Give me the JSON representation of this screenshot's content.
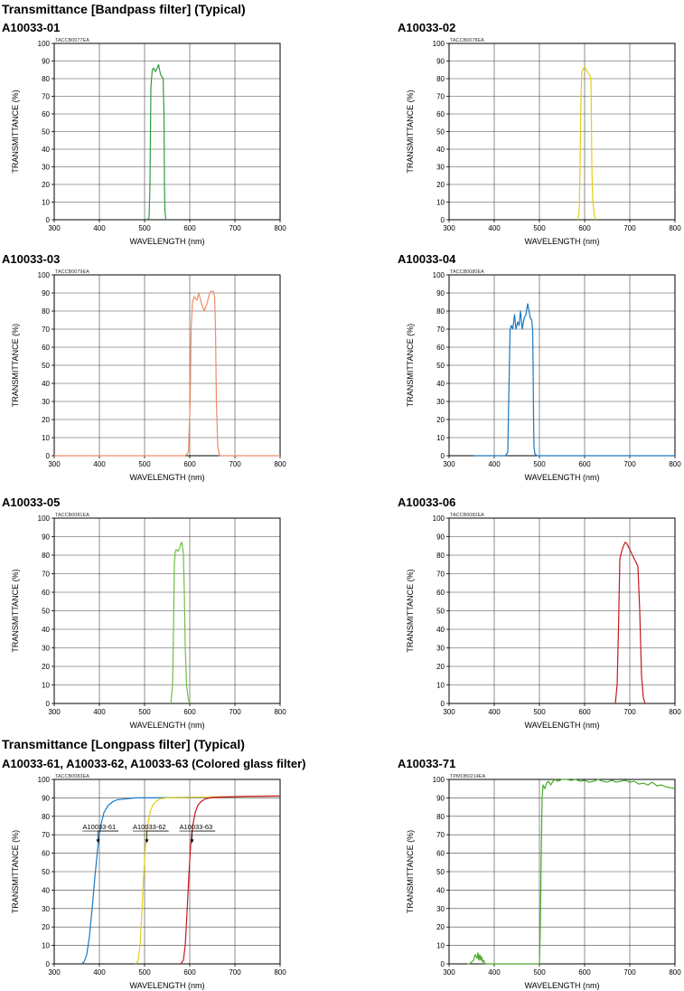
{
  "sections": [
    {
      "title": "Transmittance [Bandpass filter] (Typical)"
    },
    {
      "title": "Transmittance [Longpass filter] (Typical)"
    }
  ],
  "panels": [
    {
      "title": "A10033-01"
    },
    {
      "title": "A10033-02"
    },
    {
      "title": "A10033-03"
    },
    {
      "title": "A10033-04"
    },
    {
      "title": "A10033-05"
    },
    {
      "title": "A10033-06"
    },
    {
      "title": "A10033-61, A10033-62, A10033-63 (Colored glass filter)"
    },
    {
      "title": "A10033-71"
    }
  ],
  "chart_data": [
    {
      "type": "line",
      "code": "TACCB0077EA",
      "xlabel": "WAVELENGTH (nm)",
      "ylabel": "TRANSMITTANCE (%)",
      "xlim": [
        300,
        800
      ],
      "ylim": [
        0,
        100
      ],
      "grid": true,
      "xticks": [
        300,
        400,
        500,
        600,
        700,
        800
      ],
      "yticks": [
        0,
        10,
        20,
        30,
        40,
        50,
        60,
        70,
        80,
        90,
        100
      ],
      "series": [
        {
          "color": "#2e9e3f",
          "x": [
            505,
            510,
            512,
            514,
            517,
            520,
            524,
            528,
            531,
            534,
            536,
            539,
            541,
            543,
            544,
            545,
            547
          ],
          "y": [
            0,
            1,
            20,
            75,
            85,
            86,
            84,
            86,
            88,
            84,
            82,
            81,
            80,
            60,
            20,
            5,
            0
          ]
        }
      ]
    },
    {
      "type": "line",
      "code": "TACCB0078EA",
      "xlabel": "WAVELENGTH (nm)",
      "ylabel": "TRANSMITTANCE (%)",
      "xlim": [
        300,
        800
      ],
      "ylim": [
        0,
        100
      ],
      "grid": true,
      "xticks": [
        300,
        400,
        500,
        600,
        700,
        800
      ],
      "yticks": [
        0,
        10,
        20,
        30,
        40,
        50,
        60,
        70,
        80,
        90,
        100
      ],
      "series": [
        {
          "color": "#e2cf1a",
          "x": [
            585,
            588,
            590,
            592,
            594,
            596,
            600,
            604,
            608,
            611,
            613,
            614,
            615,
            616,
            618,
            622,
            625
          ],
          "y": [
            0,
            5,
            30,
            70,
            84,
            85,
            87,
            85,
            83,
            82,
            81,
            79,
            60,
            30,
            10,
            2,
            0
          ]
        }
      ]
    },
    {
      "type": "line",
      "code": "TACCB0079EA",
      "xlabel": "WAVELENGTH (nm)",
      "ylabel": "TRANSMITTANCE (%)",
      "xlim": [
        300,
        800
      ],
      "ylim": [
        0,
        100
      ],
      "grid": true,
      "xticks": [
        300,
        400,
        500,
        600,
        700,
        800
      ],
      "yticks": [
        0,
        10,
        20,
        30,
        40,
        50,
        60,
        70,
        80,
        90,
        100
      ],
      "series": [
        {
          "color": "#f08c6a",
          "x": [
            300,
            590,
            597,
            601,
            603,
            606,
            610,
            616,
            620,
            626,
            632,
            638,
            644,
            648,
            652,
            655,
            657,
            659,
            662,
            666,
            800
          ],
          "y": [
            0,
            0,
            2,
            30,
            70,
            85,
            88,
            86,
            90,
            84,
            80,
            84,
            90,
            91,
            91,
            88,
            70,
            30,
            5,
            0,
            0
          ]
        }
      ]
    },
    {
      "type": "line",
      "code": "TACCB0080EA",
      "xlabel": "WAVELENGTH (nm)",
      "ylabel": "TRANSMITTANCE (%)",
      "xlim": [
        300,
        800
      ],
      "ylim": [
        0,
        100
      ],
      "grid": true,
      "xticks": [
        300,
        400,
        500,
        600,
        700,
        800
      ],
      "yticks": [
        0,
        10,
        20,
        30,
        40,
        50,
        60,
        70,
        80,
        90,
        100
      ],
      "series": [
        {
          "color": "#1a78c2",
          "x": [
            355,
            425,
            430,
            432,
            435,
            438,
            441,
            445,
            448,
            452,
            455,
            458,
            462,
            466,
            470,
            474,
            477,
            480,
            483,
            485,
            486,
            487,
            488,
            490,
            495,
            800
          ],
          "y": [
            0,
            0,
            2,
            30,
            70,
            72,
            70,
            78,
            70,
            74,
            72,
            80,
            70,
            76,
            78,
            84,
            80,
            76,
            75,
            70,
            50,
            20,
            5,
            1,
            0,
            0
          ]
        }
      ]
    },
    {
      "type": "line",
      "code": "TACCB0081EA",
      "xlabel": "WAVELENGTH (nm)",
      "ylabel": "TRANSMITTANCE (%)",
      "xlim": [
        300,
        800
      ],
      "ylim": [
        0,
        100
      ],
      "grid": true,
      "xticks": [
        300,
        400,
        500,
        600,
        700,
        800
      ],
      "yticks": [
        0,
        10,
        20,
        30,
        40,
        50,
        60,
        70,
        80,
        90,
        100
      ],
      "series": [
        {
          "color": "#6ec043",
          "x": [
            558,
            562,
            564,
            566,
            568,
            570,
            574,
            578,
            580,
            582,
            584,
            586,
            588,
            590,
            593,
            597,
            600
          ],
          "y": [
            0,
            10,
            40,
            76,
            82,
            83,
            82,
            84,
            86,
            87,
            85,
            80,
            60,
            30,
            10,
            2,
            0
          ]
        }
      ]
    },
    {
      "type": "line",
      "code": "TACCB0082EA",
      "xlabel": "WAVELENGTH (nm)",
      "ylabel": "TRANSMITTANCE (%)",
      "xlim": [
        300,
        800
      ],
      "ylim": [
        0,
        100
      ],
      "grid": true,
      "xticks": [
        300,
        400,
        500,
        600,
        700,
        800
      ],
      "yticks": [
        0,
        10,
        20,
        30,
        40,
        50,
        60,
        70,
        80,
        90,
        100
      ],
      "series": [
        {
          "color": "#c8171e",
          "x": [
            668,
            672,
            675,
            678,
            682,
            686,
            690,
            694,
            698,
            702,
            706,
            710,
            714,
            718,
            722,
            726,
            730,
            734
          ],
          "y": [
            0,
            10,
            40,
            78,
            82,
            85,
            87,
            86,
            84,
            82,
            80,
            78,
            76,
            74,
            50,
            15,
            3,
            0
          ]
        }
      ]
    },
    {
      "type": "line",
      "code": "TACCB0083EA",
      "xlabel": "WAVELENGTH (nm)",
      "ylabel": "TRANSMITTANCE (%)",
      "xlim": [
        300,
        800
      ],
      "ylim": [
        0,
        100
      ],
      "grid": true,
      "xticks": [
        300,
        400,
        500,
        600,
        700,
        800
      ],
      "yticks": [
        0,
        10,
        20,
        30,
        40,
        50,
        60,
        70,
        80,
        90,
        100
      ],
      "annotations": [
        {
          "text": "A10033-61",
          "x": 363,
          "y": 73,
          "to_x": 397,
          "to_y": 66
        },
        {
          "text": "A10033-62",
          "x": 474,
          "y": 73,
          "to_x": 505,
          "to_y": 66
        },
        {
          "text": "A10033-63",
          "x": 577,
          "y": 73,
          "to_x": 605,
          "to_y": 66
        }
      ],
      "series": [
        {
          "name": "A10033-61",
          "color": "#1a78c2",
          "x": [
            360,
            366,
            372,
            378,
            384,
            390,
            396,
            402,
            410,
            420,
            430,
            440,
            460,
            480,
            520,
            600,
            700,
            800
          ],
          "y": [
            0,
            1,
            5,
            15,
            30,
            47,
            62,
            74,
            82,
            86,
            88,
            89,
            89.5,
            90,
            90,
            90.3,
            90.6,
            91
          ]
        },
        {
          "name": "A10033-62",
          "color": "#e2cf1a",
          "x": [
            480,
            486,
            490,
            494,
            498,
            502,
            506,
            512,
            518,
            525,
            535,
            550,
            570,
            600,
            700,
            800
          ],
          "y": [
            0,
            2,
            10,
            28,
            48,
            64,
            74,
            82,
            86,
            88,
            89.5,
            90,
            90.2,
            90.3,
            90.7,
            91
          ]
        },
        {
          "name": "A10033-63",
          "color": "#c8171e",
          "x": [
            580,
            586,
            590,
            594,
            598,
            602,
            606,
            612,
            618,
            625,
            635,
            650,
            680,
            720,
            800
          ],
          "y": [
            0,
            2,
            10,
            28,
            48,
            64,
            74,
            82,
            86,
            88,
            89.5,
            90.2,
            90.5,
            90.8,
            91
          ]
        }
      ]
    },
    {
      "type": "line",
      "code": "TPMOB0214EA",
      "xlabel": "WAVELENGTH (nm)",
      "ylabel": "TRANSMITTANCE (%)",
      "xlim": [
        300,
        800
      ],
      "ylim": [
        0,
        100
      ],
      "grid": true,
      "xticks": [
        300,
        400,
        500,
        600,
        700,
        800
      ],
      "yticks": [
        0,
        10,
        20,
        30,
        40,
        50,
        60,
        70,
        80,
        90,
        100
      ],
      "series": [
        {
          "color": "#4aa82a",
          "x": [
            340,
            345,
            350,
            354,
            358,
            362,
            364,
            366,
            368,
            370,
            372,
            374,
            376,
            380,
            385,
            500,
            502,
            504,
            506,
            508,
            512,
            516,
            520,
            525,
            530,
            535,
            540,
            550,
            560,
            570,
            580,
            590,
            600,
            610,
            620,
            630,
            640,
            650,
            660,
            670,
            680,
            690,
            700,
            710,
            720,
            730,
            740,
            750,
            760,
            770,
            780,
            790,
            800
          ],
          "y": [
            0,
            0,
            1,
            2,
            5,
            3,
            6,
            2,
            5,
            2,
            4,
            1,
            2,
            0,
            0,
            0,
            20,
            60,
            90,
            97,
            95,
            98,
            99,
            97,
            99,
            100,
            99,
            100,
            100,
            99.5,
            100,
            99,
            99.5,
            98.5,
            99,
            100,
            99,
            98.5,
            99.5,
            98.5,
            99,
            99.5,
            98.5,
            99,
            97.5,
            98,
            97,
            98.5,
            96.5,
            97,
            96,
            95.5,
            95
          ]
        }
      ]
    }
  ]
}
